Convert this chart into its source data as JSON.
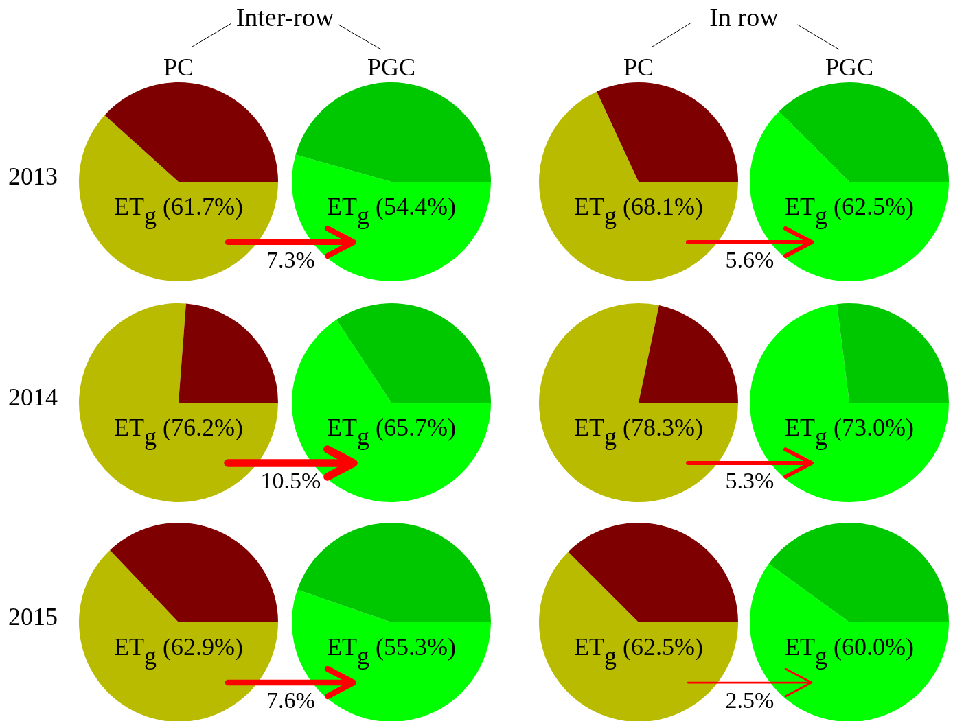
{
  "chart_data": [
    {
      "type": "pie",
      "title": "PC",
      "subtitle": "2013",
      "annotations": [
        "Inter-row",
        "7.3%"
      ],
      "categories": [
        "ET$_{g}$",
        null
      ],
      "values": [
        61.7,
        38.3
      ],
      "value_labels": [
        "(61.7%)",
        null
      ],
      "colors": [
        "#b8bb00",
        "#7f0000"
      ]
    },
    {
      "type": "pie",
      "title": "PGC",
      "categories": [
        "ET$_{g}$",
        null
      ],
      "values": [
        54.4,
        45.6
      ],
      "value_labels": [
        "(54.4%)",
        null
      ],
      "colors": [
        "#00ff00",
        "#00c800"
      ]
    },
    {
      "type": "pie",
      "title": "PC",
      "annotations": [
        "In row",
        "5.6%"
      ],
      "categories": [
        "ET$_{g}$",
        null
      ],
      "values": [
        68.1,
        31.9
      ],
      "value_labels": [
        "(68.1%)",
        null
      ],
      "colors": [
        "#b8bb00",
        "#7f0000"
      ]
    },
    {
      "type": "pie",
      "title": "PGC",
      "categories": [
        "ET$_{g}$",
        null
      ],
      "values": [
        62.5,
        37.5
      ],
      "value_labels": [
        "(62.5%)",
        null
      ],
      "colors": [
        "#00ff00",
        "#00c800"
      ]
    },
    {
      "type": "pie",
      "subtitle": "2014",
      "annotations": [
        "10.5%"
      ],
      "categories": [
        "ET$_{g}$",
        null
      ],
      "values": [
        76.2,
        23.8
      ],
      "value_labels": [
        "(76.2%)",
        null
      ],
      "colors": [
        "#b8bb00",
        "#7f0000"
      ]
    },
    {
      "type": "pie",
      "categories": [
        "ET$_{g}$",
        null
      ],
      "values": [
        65.7,
        34.3
      ],
      "value_labels": [
        "(65.7%)",
        null
      ],
      "colors": [
        "#00ff00",
        "#00c800"
      ]
    },
    {
      "type": "pie",
      "annotations": [
        "5.3%"
      ],
      "categories": [
        "ET$_{g}$",
        null
      ],
      "values": [
        78.3,
        21.7
      ],
      "value_labels": [
        "(78.3%)",
        null
      ],
      "colors": [
        "#b8bb00",
        "#7f0000"
      ]
    },
    {
      "type": "pie",
      "categories": [
        "ET$_{g}$",
        null
      ],
      "values": [
        73.0,
        27.0
      ],
      "value_labels": [
        "(73.0%)",
        null
      ],
      "colors": [
        "#00ff00",
        "#00c800"
      ]
    },
    {
      "type": "pie",
      "subtitle": "2015",
      "annotations": [
        "7.6%"
      ],
      "categories": [
        "ET$_{g}$",
        null
      ],
      "values": [
        62.9,
        37.1
      ],
      "value_labels": [
        "(62.9%)",
        null
      ],
      "colors": [
        "#b8bb00",
        "#7f0000"
      ]
    },
    {
      "type": "pie",
      "categories": [
        "ET$_{g}$",
        null
      ],
      "values": [
        55.3,
        44.7
      ],
      "value_labels": [
        "(55.3%)",
        null
      ],
      "colors": [
        "#00ff00",
        "#00c800"
      ]
    },
    {
      "type": "pie",
      "annotations": [
        "2.5%"
      ],
      "categories": [
        "ET$_{g}$",
        null
      ],
      "values": [
        62.5,
        37.5
      ],
      "value_labels": [
        "(62.5%)",
        null
      ],
      "colors": [
        "#b8bb00",
        "#7f0000"
      ]
    },
    {
      "type": "pie",
      "categories": [
        "ET$_{g}$",
        null
      ],
      "values": [
        60.0,
        40.0
      ],
      "value_labels": [
        "(60.0%)",
        null
      ],
      "colors": [
        "#00ff00",
        "#00c800"
      ]
    }
  ]
}
